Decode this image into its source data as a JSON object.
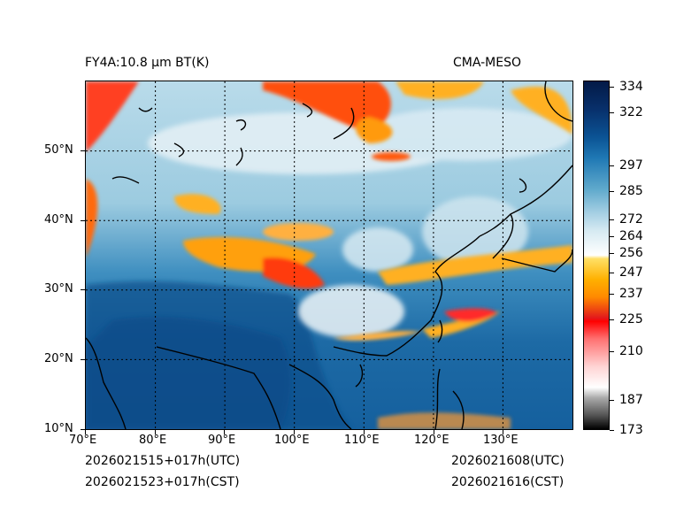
{
  "header": {
    "title_left": "FY4A:10.8 µm BT(K)",
    "title_right": "CMA-MESO"
  },
  "map": {
    "lon_ticks": [
      "70°E",
      "80°E",
      "90°E",
      "100°E",
      "110°E",
      "120°E",
      "130°E"
    ],
    "lat_ticks": [
      "50°N",
      "40°N",
      "30°N",
      "20°N",
      "10°N"
    ],
    "extent": {
      "lon_min": 70,
      "lon_max": 140,
      "lat_min": 10,
      "lat_max": 60
    }
  },
  "colorbar": {
    "labels": [
      "334",
      "322",
      "297",
      "285",
      "272",
      "264",
      "256",
      "247",
      "237",
      "225",
      "210",
      "187",
      "173"
    ],
    "values": [
      334,
      322,
      297,
      285,
      272,
      264,
      256,
      247,
      237,
      225,
      210,
      187,
      173
    ],
    "min": 173,
    "max": 337
  },
  "footer": {
    "init_utc": "2026021515+017h(UTC)",
    "init_cst": "2026021523+017h(CST)",
    "valid_utc": "2026021608(UTC)",
    "valid_cst": "2026021616(CST)"
  }
}
